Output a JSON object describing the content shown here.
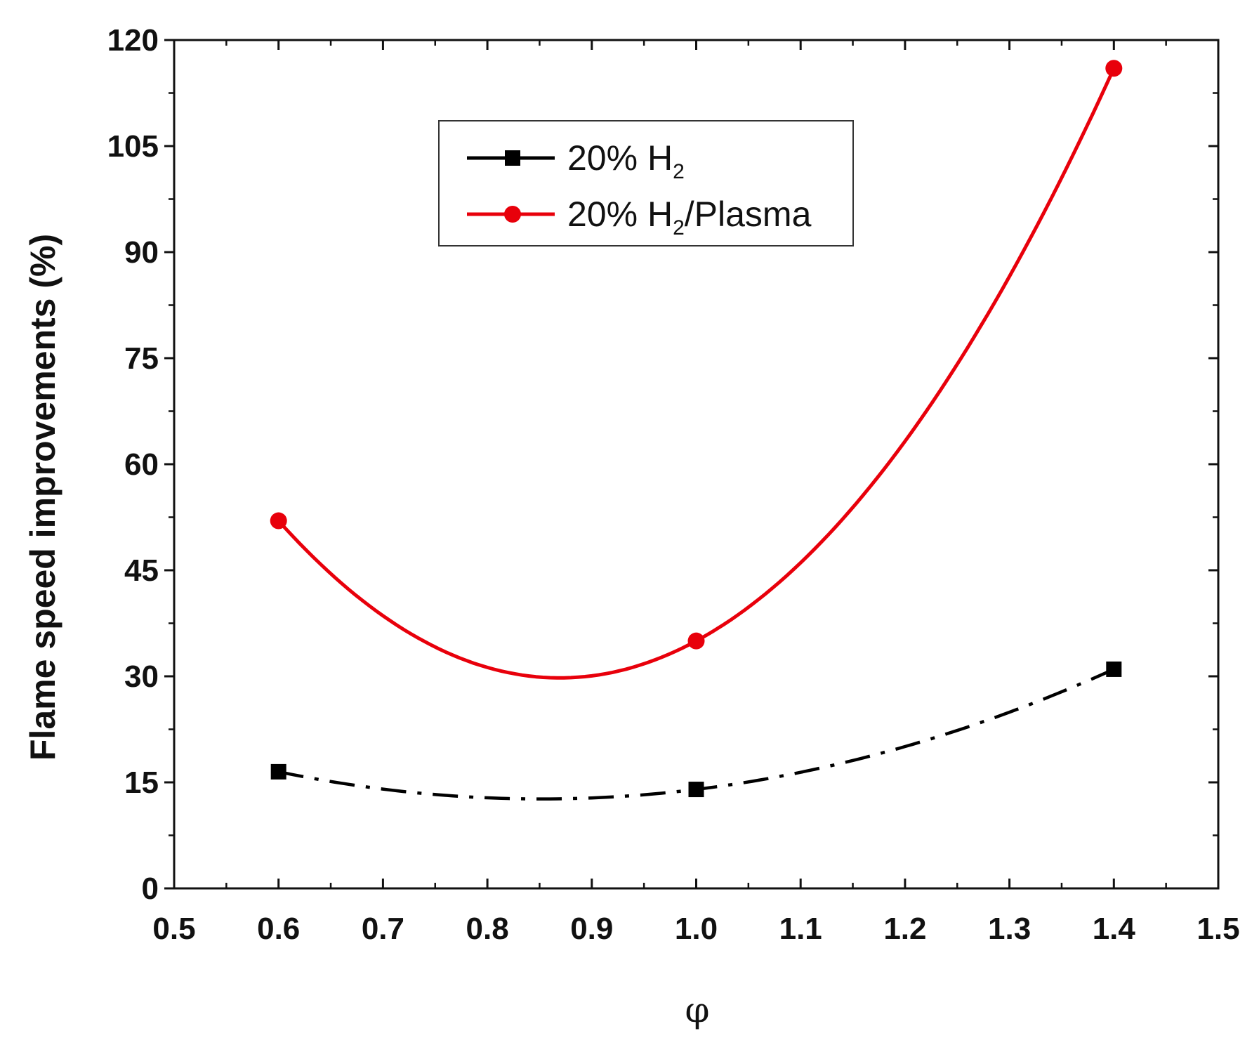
{
  "chart_data": {
    "type": "line",
    "title": "",
    "xlabel": "φ",
    "ylabel": "Flame speed improvements (%)",
    "xlim": [
      0.5,
      1.5
    ],
    "ylim": [
      0,
      120
    ],
    "xticks": [
      0.5,
      0.6,
      0.7,
      0.8,
      0.9,
      1.0,
      1.1,
      1.2,
      1.3,
      1.4,
      1.5
    ],
    "xtick_labels": [
      "0.5",
      "0.6",
      "0.7",
      "0.8",
      "0.9",
      "1.0",
      "1.1",
      "1.2",
      "1.3",
      "1.4",
      "1.5"
    ],
    "yticks": [
      0,
      15,
      30,
      45,
      60,
      75,
      90,
      105,
      120
    ],
    "ytick_labels": [
      "0",
      "15",
      "30",
      "45",
      "60",
      "75",
      "90",
      "105",
      "120"
    ],
    "grid": false,
    "legend_position": "top-center",
    "series": [
      {
        "name": "20% H2",
        "label_main": "20% H",
        "label_sub": "2",
        "label_tail": "",
        "color": "#000000",
        "marker": "square",
        "line_style": "dash-dot",
        "x": [
          0.6,
          1.0,
          1.4
        ],
        "values": [
          16.5,
          14,
          31
        ]
      },
      {
        "name": "20% H2/Plasma",
        "label_main": "20% H",
        "label_sub": "2",
        "label_tail": "/Plasma",
        "color": "#e8000b",
        "marker": "circle",
        "line_style": "solid",
        "x": [
          0.6,
          1.0,
          1.4
        ],
        "values": [
          52,
          35,
          116
        ]
      }
    ]
  }
}
